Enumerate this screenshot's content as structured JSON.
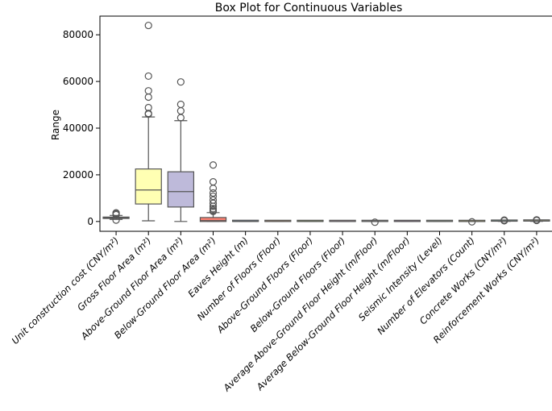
{
  "chart_data": {
    "type": "box",
    "title": "Box Plot for Continuous Variables",
    "xlabel": "",
    "ylabel": "Range",
    "ylim": [
      -4200,
      88000
    ],
    "yticks": [
      0,
      20000,
      40000,
      60000,
      80000
    ],
    "ytick_labels": [
      "0",
      "20000",
      "40000",
      "60000",
      "80000"
    ],
    "grid": false,
    "categories": [
      "Unit construction cost (CNY/m²)",
      "Gross Floor Area (m²)",
      "Above-Ground Floor Area (m²)",
      "Below-Ground Floor Area (m²)",
      "Eaves Height (m)",
      "Number of Floors (Floor)",
      "Above-Ground Floors (Floor)",
      "Below-Ground Floors (Floor)",
      "Average Above-Ground Floor Height (m/Floor)",
      "Average Below-Ground Floor Height (m/Floor)",
      "Seismic Intensity (Level)",
      "Number of Elevators (Count)",
      "Concrete Works (CNY/m²)",
      "Reinforcement Works (CNY/m²)"
    ],
    "boxes": [
      {
        "name": "Unit construction cost (CNY/m²)",
        "color": "#8dd3c7",
        "min": 900,
        "q1": 1300,
        "median": 1600,
        "q3": 1900,
        "max": 2600,
        "outliers": [
          3700,
          3300,
          2900,
          600
        ]
      },
      {
        "name": "Gross Floor Area (m²)",
        "color": "#ffffb3",
        "min": 300,
        "q1": 7500,
        "median": 13500,
        "q3": 22500,
        "max": 44800,
        "outliers": [
          84000,
          62300,
          56000,
          53300,
          48800,
          46300,
          46000
        ]
      },
      {
        "name": "Above-Ground Floor Area (m²)",
        "color": "#bebada",
        "min": 0,
        "q1": 6200,
        "median": 12800,
        "q3": 21300,
        "max": 43200,
        "outliers": [
          59800,
          50200,
          47400,
          44500
        ]
      },
      {
        "name": "Below-Ground Floor Area (m²)",
        "color": "#fb8072",
        "min": 0,
        "q1": 0,
        "median": 400,
        "q3": 1700,
        "max": 3800,
        "outliers": [
          24200,
          17000,
          14200,
          12200,
          10800,
          9200,
          7800,
          6500,
          5500,
          4800,
          4300
        ]
      },
      {
        "name": "Eaves Height (m)",
        "color": "#80b1d3",
        "min": 10,
        "q1": 20,
        "median": 30,
        "q3": 45,
        "max": 90,
        "outliers": []
      },
      {
        "name": "Number of Floors (Floor)",
        "color": "#fdb462",
        "min": 1,
        "q1": 5,
        "median": 8,
        "q3": 14,
        "max": 30,
        "outliers": []
      },
      {
        "name": "Above-Ground Floors (Floor)",
        "color": "#b3de69",
        "min": 1,
        "q1": 4,
        "median": 7,
        "q3": 12,
        "max": 28,
        "outliers": []
      },
      {
        "name": "Below-Ground Floors (Floor)",
        "color": "#fccde5",
        "min": 0,
        "q1": 0,
        "median": 1,
        "q3": 1,
        "max": 3,
        "outliers": []
      },
      {
        "name": "Average Above-Ground Floor Height (m/Floor)",
        "color": "#d9d9d9",
        "min": 3,
        "q1": 3,
        "median": 3.5,
        "q3": 4,
        "max": 5,
        "outliers": [
          -300
        ]
      },
      {
        "name": "Average Below-Ground Floor Height (m/Floor)",
        "color": "#bc80bd",
        "min": 0,
        "q1": 0,
        "median": 3,
        "q3": 4,
        "max": 6,
        "outliers": []
      },
      {
        "name": "Seismic Intensity (Level)",
        "color": "#ccebc5",
        "min": 6,
        "q1": 7,
        "median": 7,
        "q3": 8,
        "max": 8,
        "outliers": []
      },
      {
        "name": "Number of Elevators (Count)",
        "color": "#ffed6f",
        "min": 0,
        "q1": 1,
        "median": 2,
        "q3": 4,
        "max": 8,
        "outliers": [
          -150
        ]
      },
      {
        "name": "Concrete Works (CNY/m²)",
        "color": "#8dd3c7",
        "min": 50,
        "q1": 120,
        "median": 160,
        "q3": 200,
        "max": 300,
        "outliers": [
          600,
          450,
          380,
          340
        ]
      },
      {
        "name": "Reinforcement Works (CNY/m²)",
        "color": "#ffffb3",
        "min": 50,
        "q1": 180,
        "median": 220,
        "q3": 280,
        "max": 420,
        "outliers": [
          700,
          550,
          500,
          470
        ]
      }
    ]
  }
}
